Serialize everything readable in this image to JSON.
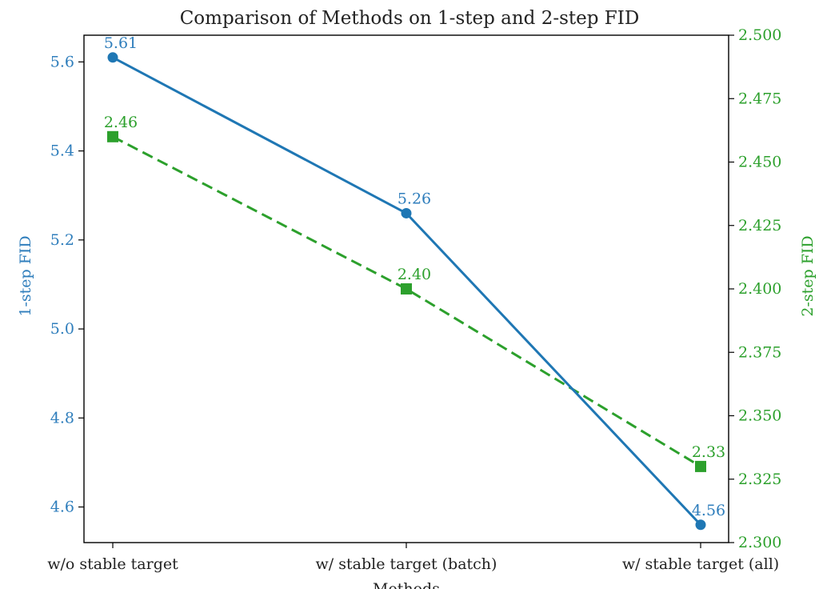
{
  "chart_data": {
    "type": "line",
    "title": "Comparison of Methods on 1-step and 2-step FID",
    "xlabel": "Methods",
    "categories": [
      "w/o stable target",
      "w/ stable target (batch)",
      "w/ stable target (all)"
    ],
    "y_left": {
      "label": "1-step FID",
      "ylim": [
        4.52,
        5.66
      ],
      "ticks": [
        "4.6",
        "4.8",
        "5.0",
        "5.2",
        "5.4",
        "5.6"
      ],
      "color": "#2f7ebc"
    },
    "y_right": {
      "label": "2-step FID",
      "ylim": [
        2.3,
        2.5
      ],
      "ticks": [
        "2.300",
        "2.325",
        "2.350",
        "2.375",
        "2.400",
        "2.425",
        "2.450",
        "2.475",
        "2.500"
      ],
      "color": "#2ca02c"
    },
    "series": [
      {
        "name": "1-step FID",
        "axis": "left",
        "values": [
          5.61,
          5.26,
          4.56
        ],
        "labels": [
          "5.61",
          "5.26",
          "4.56"
        ],
        "color": "#1f77b4",
        "style": "solid",
        "marker": "circle"
      },
      {
        "name": "2-step FID",
        "axis": "right",
        "values": [
          2.46,
          2.4,
          2.33
        ],
        "labels": [
          "2.46",
          "2.40",
          "2.33"
        ],
        "color": "#2ca02c",
        "style": "dashed",
        "marker": "square"
      }
    ],
    "grid": false,
    "legend": "none"
  }
}
